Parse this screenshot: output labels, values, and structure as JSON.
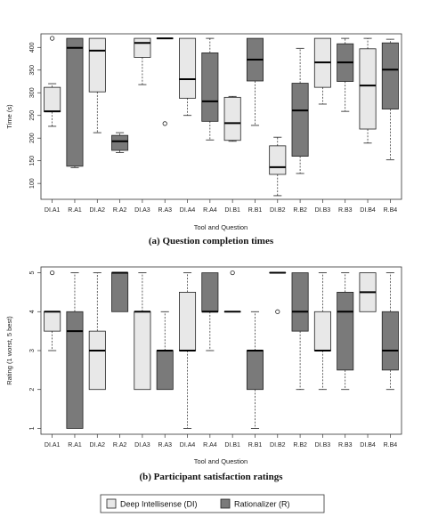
{
  "chart_data": [
    {
      "type": "boxplot",
      "caption": "(a) Question completion times",
      "xlabel": "Tool and Question",
      "ylabel": "Time (s)",
      "ylim": [
        65,
        430
      ],
      "yticks": [
        100,
        150,
        200,
        250,
        300,
        350,
        400
      ],
      "categories": [
        "DI.A1",
        "R.A1",
        "DI.A2",
        "R.A2",
        "DI.A3",
        "R.A3",
        "DI.A4",
        "R.A4",
        "DI.B1",
        "R.B1",
        "DI.B2",
        "R.B2",
        "DI.B3",
        "R.B3",
        "DI.B4",
        "R.B4"
      ],
      "tools": [
        "DI",
        "R",
        "DI",
        "R",
        "DI",
        "R",
        "DI",
        "R",
        "DI",
        "R",
        "DI",
        "R",
        "DI",
        "R",
        "DI",
        "R"
      ],
      "boxes": [
        {
          "min": 226,
          "q1": 258,
          "median": 259,
          "q3": 312,
          "max": 320,
          "outliers": [
            420
          ]
        },
        {
          "min": 135,
          "q1": 138,
          "median": 399,
          "q3": 420,
          "max": 420,
          "outliers": []
        },
        {
          "min": 212,
          "q1": 302,
          "median": 393,
          "q3": 420,
          "max": 420,
          "outliers": []
        },
        {
          "min": 168,
          "q1": 173,
          "median": 193,
          "q3": 206,
          "max": 212,
          "outliers": []
        },
        {
          "min": 318,
          "q1": 378,
          "median": 410,
          "q3": 420,
          "max": 420,
          "outliers": []
        },
        {
          "min": 420,
          "q1": 420,
          "median": 420,
          "q3": 420,
          "max": 420,
          "outliers": [
            232
          ]
        },
        {
          "min": 250,
          "q1": 288,
          "median": 330,
          "q3": 420,
          "max": 420,
          "outliers": []
        },
        {
          "min": 196,
          "q1": 237,
          "median": 281,
          "q3": 388,
          "max": 420,
          "outliers": []
        },
        {
          "min": 193,
          "q1": 195,
          "median": 233,
          "q3": 290,
          "max": 292,
          "outliers": []
        },
        {
          "min": 228,
          "q1": 326,
          "median": 373,
          "q3": 420,
          "max": 420,
          "outliers": []
        },
        {
          "min": 73,
          "q1": 120,
          "median": 136,
          "q3": 183,
          "max": 202,
          "outliers": []
        },
        {
          "min": 122,
          "q1": 160,
          "median": 261,
          "q3": 321,
          "max": 398,
          "outliers": []
        },
        {
          "min": 275,
          "q1": 312,
          "median": 367,
          "q3": 420,
          "max": 420,
          "outliers": []
        },
        {
          "min": 259,
          "q1": 325,
          "median": 367,
          "q3": 408,
          "max": 420,
          "outliers": []
        },
        {
          "min": 189,
          "q1": 220,
          "median": 316,
          "q3": 397,
          "max": 420,
          "outliers": []
        },
        {
          "min": 152,
          "q1": 264,
          "median": 351,
          "q3": 410,
          "max": 418,
          "outliers": []
        }
      ]
    },
    {
      "type": "boxplot",
      "caption": "(b) Participant satisfaction ratings",
      "xlabel": "Tool and Question",
      "ylabel": "Rating (1 worst, 5 best)",
      "ylim": [
        0.85,
        5.15
      ],
      "yticks": [
        1,
        2,
        3,
        4,
        5
      ],
      "categories": [
        "DI.A1",
        "R.A1",
        "DI.A2",
        "R.A2",
        "DI.A3",
        "R.A3",
        "DI.A4",
        "R.A4",
        "DI.B1",
        "R.B1",
        "DI.B2",
        "R.B2",
        "DI.B3",
        "R.B3",
        "DI.B4",
        "R.B4"
      ],
      "tools": [
        "DI",
        "R",
        "DI",
        "R",
        "DI",
        "R",
        "DI",
        "R",
        "DI",
        "R",
        "DI",
        "R",
        "DI",
        "R",
        "DI",
        "R"
      ],
      "boxes": [
        {
          "min": 3,
          "q1": 3.5,
          "median": 4,
          "q3": 4,
          "max": 4,
          "outliers": [
            5
          ]
        },
        {
          "min": 1,
          "q1": 1,
          "median": 3.5,
          "q3": 4,
          "max": 5,
          "outliers": []
        },
        {
          "min": 2,
          "q1": 2,
          "median": 3,
          "q3": 3.5,
          "max": 5,
          "outliers": []
        },
        {
          "min": 4,
          "q1": 4,
          "median": 5,
          "q3": 5,
          "max": 5,
          "outliers": []
        },
        {
          "min": 2,
          "q1": 2,
          "median": 4,
          "q3": 4,
          "max": 5,
          "outliers": []
        },
        {
          "min": 2,
          "q1": 2,
          "median": 3,
          "q3": 3,
          "max": 4,
          "outliers": []
        },
        {
          "min": 1,
          "q1": 3,
          "median": 3,
          "q3": 4.5,
          "max": 5,
          "outliers": []
        },
        {
          "min": 3,
          "q1": 4,
          "median": 4,
          "q3": 5,
          "max": 5,
          "outliers": []
        },
        {
          "min": 4,
          "q1": 4,
          "median": 4,
          "q3": 4,
          "max": 4,
          "outliers": [
            5
          ]
        },
        {
          "min": 1,
          "q1": 2,
          "median": 3,
          "q3": 3,
          "max": 4,
          "outliers": []
        },
        {
          "min": 5,
          "q1": 5,
          "median": 5,
          "q3": 5,
          "max": 5,
          "outliers": [
            4
          ]
        },
        {
          "min": 2,
          "q1": 3.5,
          "median": 4,
          "q3": 5,
          "max": 5,
          "outliers": []
        },
        {
          "min": 2,
          "q1": 3,
          "median": 3,
          "q3": 4,
          "max": 5,
          "outliers": []
        },
        {
          "min": 2,
          "q1": 2.5,
          "median": 4,
          "q3": 4.5,
          "max": 5,
          "outliers": []
        },
        {
          "min": 4,
          "q1": 4,
          "median": 4.5,
          "q3": 5,
          "max": 5,
          "outliers": []
        },
        {
          "min": 2,
          "q1": 2.5,
          "median": 3,
          "q3": 4,
          "max": 5,
          "outliers": []
        }
      ]
    }
  ],
  "legend": {
    "items": [
      {
        "label": "Deep Intellisense (DI)",
        "color": "#e8e8e8"
      },
      {
        "label": "Rationalizer (R)",
        "color": "#7a7a7a"
      }
    ]
  },
  "colors": {
    "DI": "#e8e8e8",
    "R": "#7a7a7a",
    "stroke": "#222222"
  }
}
